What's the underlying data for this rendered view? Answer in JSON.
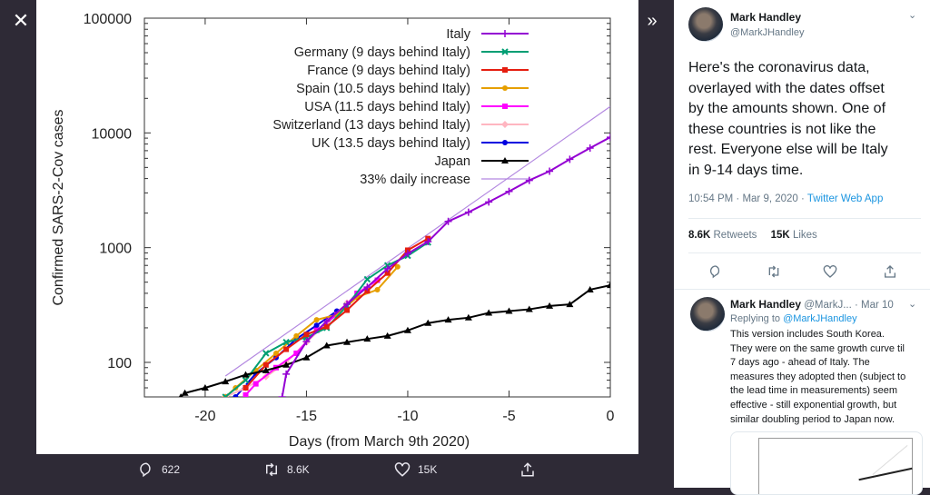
{
  "viewer": {
    "close_icon": "close-icon",
    "expand_icon": "chevrons-right-icon",
    "actions": {
      "replies": "622",
      "retweets": "8.6K",
      "likes": "15K"
    }
  },
  "tweet": {
    "name": "Mark Handley",
    "handle": "@MarkJHandley",
    "body": [
      "Here's the coronavirus data,",
      "overlayed with the dates offset",
      "by the amounts shown.  One of",
      "these countries is not like the",
      "rest.  Everyone else will be Italy",
      "in 9-14 days time."
    ],
    "time": "10:54 PM · Mar 9, 2020 · ",
    "source": "Twitter Web App",
    "retweets": "8.6K",
    "retweets_label": "Retweets",
    "likes": "15K",
    "likes_label": "Likes"
  },
  "reply": {
    "name": "Mark Handley",
    "handle_time": "@MarkJ... · Mar 10",
    "replying_prefix": "Replying to ",
    "replying_to": "@MarkJHandley",
    "body": [
      "This version includes South Korea.",
      "They were on the same growth curve til",
      "7 days ago - ahead of Italy.  The",
      "measures they adopted then (subject to",
      "the lead time in measurements) seem",
      "effective - still exponential growth, but",
      "similar doubling period to Japan now."
    ]
  },
  "chart_data": {
    "type": "line",
    "xlabel": "Days (from March 9th 2020)",
    "ylabel": "Confirmed SARS-2-Cov cases",
    "xlim": [
      -23,
      0
    ],
    "ylim": [
      50,
      100000
    ],
    "yscale": "log",
    "xticks": [
      "-20",
      "-15",
      "-10",
      "-5",
      "0"
    ],
    "yticks": [
      "100",
      "1000",
      "10000",
      "100000"
    ],
    "legend_position": "top-right",
    "series": [
      {
        "name": "Italy",
        "color": "#9400d3",
        "marker": "plus",
        "x": [
          -16.2,
          -16,
          -15,
          -14,
          -13,
          -12,
          -11,
          -10,
          -9,
          -8,
          -7,
          -6,
          -5,
          -4,
          -3,
          -2,
          -1,
          0
        ],
        "y": [
          50,
          79,
          152,
          229,
          322,
          453,
          655,
          888,
          1128,
          1694,
          2036,
          2502,
          3089,
          3858,
          4636,
          5883,
          7375,
          9172
        ]
      },
      {
        "name": "Germany (9 days behind Italy)",
        "color": "#009e73",
        "marker": "x",
        "x": [
          -19,
          -18,
          -17,
          -16,
          -15,
          -14,
          -13,
          -12,
          -11,
          -10,
          -9
        ],
        "y": [
          50,
          70,
          120,
          150,
          165,
          200,
          310,
          530,
          700,
          850,
          1110
        ]
      },
      {
        "name": "France (9 days behind Italy)",
        "color": "#e51e10",
        "marker": "square",
        "x": [
          -18,
          -17,
          -16,
          -15,
          -14,
          -13,
          -12,
          -11,
          -10,
          -9
        ],
        "y": [
          60,
          95,
          130,
          175,
          205,
          285,
          420,
          600,
          950,
          1200
        ]
      },
      {
        "name": "Spain (10.5 days behind Italy)",
        "color": "#e69f00",
        "marker": "circle",
        "x": [
          -19,
          -18.5,
          -17.5,
          -16.5,
          -15.5,
          -14.5,
          -13.5,
          -12.5,
          -11.5,
          -10.5
        ],
        "y": [
          50,
          60,
          85,
          120,
          170,
          235,
          260,
          370,
          430,
          680
        ]
      },
      {
        "name": "USA (11.5 days behind Italy)",
        "color": "#ff00ff",
        "marker": "square",
        "x": [
          -18,
          -17.5,
          -16.5,
          -15.5,
          -14.5,
          -13.5,
          -12.5,
          -11.5
        ],
        "y": [
          52,
          65,
          90,
          120,
          190,
          260,
          400,
          520
        ]
      },
      {
        "name": "Switzerland (13 days behind Italy)",
        "color": "#ffb6c1",
        "marker": "diamond",
        "x": [
          -19,
          -18,
          -17,
          -16,
          -15,
          -14,
          -13
        ],
        "y": [
          50,
          60,
          75,
          100,
          150,
          220,
          330
        ]
      },
      {
        "name": "UK (13.5 days behind Italy)",
        "color": "#0000e0",
        "marker": "circle",
        "x": [
          -18.5,
          -17.5,
          -16.5,
          -15.5,
          -14.5,
          -13.5
        ],
        "y": [
          50,
          80,
          110,
          160,
          210,
          280
        ]
      },
      {
        "name": "Japan",
        "color": "#000000",
        "marker": "triangle",
        "x": [
          -21.2,
          -21,
          -20,
          -19,
          -18,
          -17,
          -16,
          -15,
          -14,
          -13,
          -12,
          -11,
          -10,
          -9,
          -8,
          -7,
          -6,
          -5,
          -4,
          -3,
          -2,
          -1,
          0
        ],
        "y": [
          50,
          54,
          60,
          68,
          78,
          85,
          95,
          110,
          140,
          150,
          160,
          170,
          190,
          220,
          235,
          245,
          270,
          280,
          290,
          310,
          320,
          430,
          470
        ]
      },
      {
        "name": "33% daily increase",
        "color": "#b388e0",
        "marker": "none",
        "x": [
          -19,
          0
        ],
        "y": [
          76,
          17000
        ]
      }
    ]
  }
}
